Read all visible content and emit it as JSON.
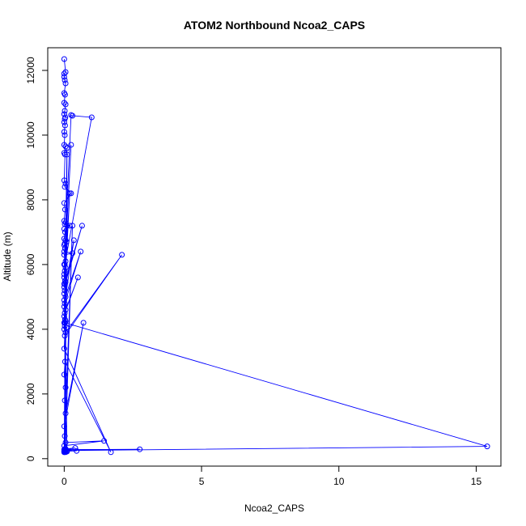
{
  "chart_data": {
    "type": "scatter",
    "title": "ATOM2 Northbound Ncoa2_CAPS",
    "xlabel": "Ncoa2_CAPS",
    "ylabel": "Altitude (m)",
    "xlim": [
      -0.6,
      15.9
    ],
    "ylim": [
      -230,
      12700
    ],
    "x_ticks": [
      0,
      5,
      10,
      15
    ],
    "y_ticks": [
      0,
      2000,
      4000,
      6000,
      8000,
      10000,
      12000
    ],
    "grid": false,
    "legend": "none",
    "color": "#0000ff",
    "series": [
      {
        "x": [
          0.0,
          0.05,
          0.0,
          0.0,
          0.02,
          0.05,
          0.0,
          0.03,
          0.0,
          0.05,
          0.02,
          0.0,
          0.04,
          0.02,
          0.0,
          0.03,
          0.0,
          0.02,
          0.0,
          0.05,
          0.0,
          0.03,
          0.0,
          0.05,
          0.02,
          0.25,
          0.0,
          0.03,
          0.0,
          0.05,
          0.02,
          0.2,
          0.0,
          0.03,
          0.0,
          0.05,
          0.08,
          0.02,
          0.0,
          0.03,
          0.0,
          0.3,
          0.0,
          0.05,
          0.02,
          1.0,
          0.3,
          0.25,
          0.0,
          0.05,
          0.02,
          0.0,
          0.25,
          0.0,
          0.03,
          0.05,
          0.0,
          0.65,
          0.0,
          0.2,
          0.02,
          0.0,
          0.35,
          0.05,
          0.0,
          0.6,
          0.02,
          0.1,
          0.0,
          0.05,
          0.5,
          0.02,
          0.0,
          0.03,
          0.05,
          0.0,
          0.02,
          0.08,
          0.0,
          0.1,
          0.05,
          2.1,
          0.02,
          0.0,
          1.7,
          0.03,
          0.0,
          0.05,
          0.02,
          0.05,
          0.7,
          0.0,
          0.02,
          0.3,
          0.05,
          1.45,
          0.0,
          0.02,
          0.1,
          0.03,
          2.75,
          0.0,
          0.05,
          0.02,
          0.1,
          0.0,
          0.03,
          15.4,
          0.0,
          0.05,
          0.4,
          0.02,
          0.45,
          0.0,
          0.03,
          0.05,
          0.0,
          0.1,
          0.02,
          0.05,
          0.0
        ],
        "y": [
          12350,
          11950,
          11900,
          11800,
          11700,
          11600,
          11300,
          11250,
          11000,
          10950,
          10750,
          10650,
          10550,
          10500,
          10400,
          10300,
          10100,
          10000,
          9700,
          9650,
          9450,
          9400,
          8600,
          8500,
          8400,
          8200,
          7900,
          7700,
          7350,
          7300,
          7250,
          7200,
          7100,
          7000,
          6800,
          6750,
          6700,
          6650,
          6600,
          6500,
          6400,
          6350,
          6300,
          6100,
          6000,
          10550,
          10600,
          10620,
          6000,
          5900,
          5800,
          5700,
          9700,
          5600,
          5500,
          5450,
          5400,
          7200,
          5300,
          8200,
          5200,
          5100,
          6750,
          5000,
          4900,
          6400,
          4800,
          7200,
          4700,
          4600,
          5600,
          4500,
          4400,
          4300,
          4250,
          4200,
          4100,
          4050,
          4000,
          9600,
          3900,
          6300,
          3800,
          3400,
          200,
          3000,
          2600,
          2200,
          1800,
          1400,
          4200,
          1000,
          700,
          7200,
          500,
          550,
          400,
          300,
          9400,
          250,
          290,
          280,
          200,
          5400,
          250,
          200,
          4200,
          380,
          250,
          300,
          330,
          270,
          240,
          230,
          220,
          210,
          200,
          220,
          250,
          300,
          210
        ]
      }
    ]
  }
}
